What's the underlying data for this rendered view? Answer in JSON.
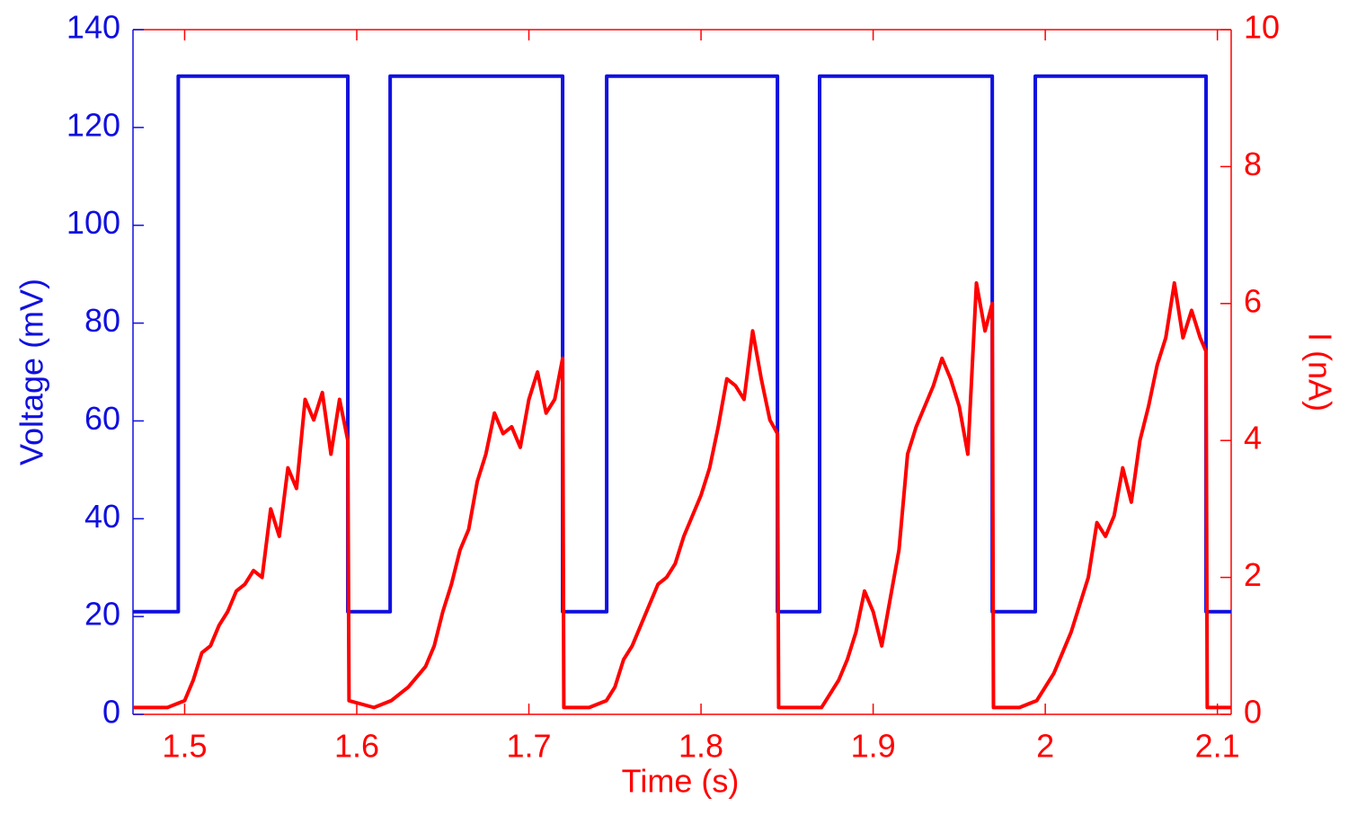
{
  "chart_data": {
    "type": "line",
    "xlabel": "Time (s)",
    "ylabel": "Voltage (mV)",
    "y2label": "I (nA)",
    "xlim": [
      1.47,
      2.108
    ],
    "xticks": [
      1.5,
      1.6,
      1.7,
      1.8,
      1.9,
      2,
      2.1
    ],
    "ylim": [
      0,
      140
    ],
    "yticks": [
      0,
      20,
      40,
      60,
      80,
      100,
      120,
      140
    ],
    "y2lim": [
      0,
      10
    ],
    "y2ticks": [
      0,
      2,
      4,
      6,
      8,
      10
    ],
    "ycolor": "#1010e0",
    "y2color": "#ff0000",
    "series": [
      {
        "color": "#1010e0",
        "x": [
          1.47,
          1.4963,
          1.4963,
          1.5948,
          1.5948,
          1.6194,
          1.6194,
          1.7196,
          1.7196,
          1.7452,
          1.7452,
          1.8444,
          1.8444,
          1.8689,
          1.8689,
          1.9692,
          1.9692,
          1.9942,
          1.9942,
          2.0934,
          2.0934,
          2.108
        ],
        "values": [
          21,
          21,
          130.5,
          130.5,
          21,
          21,
          130.5,
          130.5,
          21,
          21,
          130.5,
          130.5,
          21,
          21,
          130.5,
          130.5,
          21,
          21,
          130.5,
          130.5,
          21,
          21
        ]
      },
      {
        "color": "#ff0000",
        "axis": "y2",
        "x": [
          1.47,
          1.48,
          1.49,
          1.5,
          1.505,
          1.51,
          1.515,
          1.52,
          1.525,
          1.53,
          1.535,
          1.54,
          1.545,
          1.55,
          1.555,
          1.56,
          1.565,
          1.57,
          1.575,
          1.58,
          1.585,
          1.59,
          1.5948,
          1.5955,
          1.61,
          1.62,
          1.63,
          1.64,
          1.645,
          1.65,
          1.655,
          1.66,
          1.665,
          1.67,
          1.675,
          1.68,
          1.685,
          1.69,
          1.695,
          1.7,
          1.705,
          1.71,
          1.715,
          1.7196,
          1.7203,
          1.735,
          1.745,
          1.75,
          1.755,
          1.76,
          1.765,
          1.77,
          1.775,
          1.78,
          1.785,
          1.79,
          1.795,
          1.8,
          1.805,
          1.81,
          1.815,
          1.82,
          1.825,
          1.83,
          1.835,
          1.84,
          1.8444,
          1.8451,
          1.86,
          1.87,
          1.875,
          1.88,
          1.885,
          1.89,
          1.895,
          1.9,
          1.905,
          1.91,
          1.915,
          1.92,
          1.925,
          1.93,
          1.935,
          1.94,
          1.945,
          1.95,
          1.955,
          1.96,
          1.965,
          1.9692,
          1.9699,
          1.985,
          1.995,
          2.0,
          2.005,
          2.01,
          2.015,
          2.02,
          2.025,
          2.03,
          2.035,
          2.04,
          2.045,
          2.05,
          2.055,
          2.06,
          2.065,
          2.07,
          2.075,
          2.08,
          2.085,
          2.09,
          2.0934,
          2.0941,
          2.108
        ],
        "values": [
          0.1,
          0.1,
          0.1,
          0.2,
          0.5,
          0.9,
          1.0,
          1.3,
          1.5,
          1.8,
          1.9,
          2.1,
          2.0,
          3.0,
          2.6,
          3.6,
          3.3,
          4.6,
          4.3,
          4.7,
          3.8,
          4.6,
          4.0,
          0.2,
          0.1,
          0.2,
          0.4,
          0.7,
          1.0,
          1.5,
          1.9,
          2.4,
          2.7,
          3.4,
          3.8,
          4.4,
          4.1,
          4.2,
          3.9,
          4.6,
          5.0,
          4.4,
          4.6,
          5.2,
          0.1,
          0.1,
          0.2,
          0.4,
          0.8,
          1.0,
          1.3,
          1.6,
          1.9,
          2.0,
          2.2,
          2.6,
          2.9,
          3.2,
          3.6,
          4.2,
          4.9,
          4.8,
          4.6,
          5.6,
          4.9,
          4.3,
          4.1,
          0.1,
          0.1,
          0.1,
          0.3,
          0.5,
          0.8,
          1.2,
          1.8,
          1.5,
          1.0,
          1.7,
          2.4,
          3.8,
          4.2,
          4.5,
          4.8,
          5.2,
          4.9,
          4.5,
          3.8,
          6.3,
          5.6,
          6.0,
          0.1,
          0.1,
          0.2,
          0.4,
          0.6,
          0.9,
          1.2,
          1.6,
          2.0,
          2.8,
          2.6,
          2.9,
          3.6,
          3.1,
          4.0,
          4.5,
          5.1,
          5.5,
          6.3,
          5.5,
          5.9,
          5.5,
          5.3,
          0.1,
          0.1
        ]
      }
    ]
  }
}
